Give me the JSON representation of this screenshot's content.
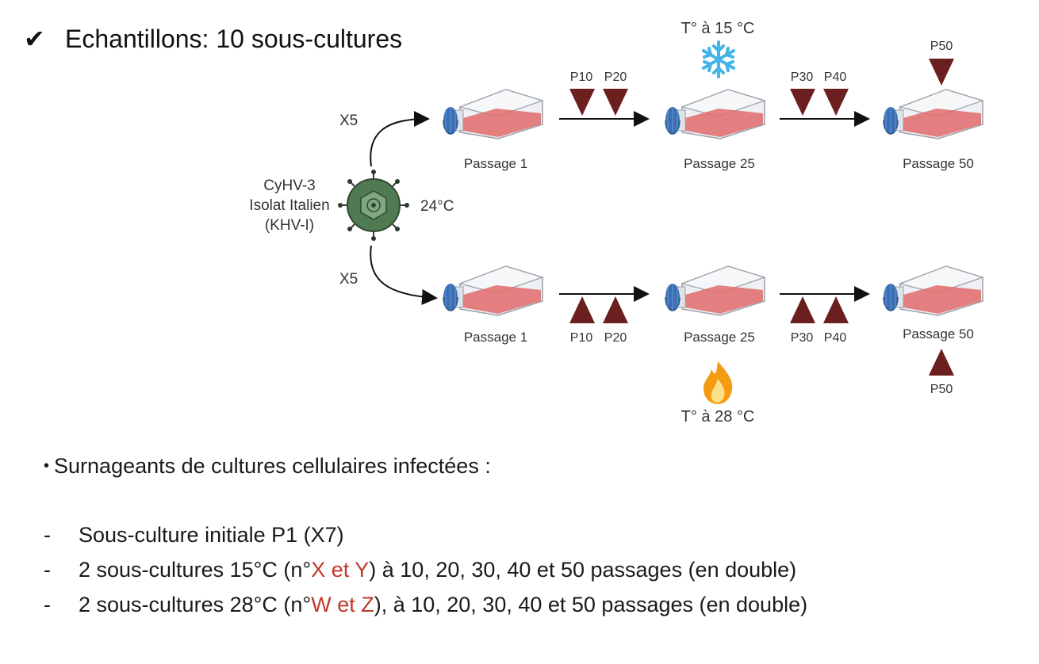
{
  "title": "Echantillons: 10 sous-cultures",
  "check_icon": "✔",
  "virus": {
    "lines": [
      "CyHV-3",
      "Isolat Italien",
      "(KHV-I)"
    ],
    "temperature": "24°C",
    "icon": "virus-icon"
  },
  "branch_multiplier_top": "X5",
  "branch_multiplier_bottom": "X5",
  "top_row": {
    "temperature": "T° à 15 °C",
    "icon": "snowflake-icon",
    "passages": [
      "Passage 1",
      "Passage 25",
      "Passage 50"
    ],
    "markers_1": [
      "P10",
      "P20"
    ],
    "markers_2": [
      "P30",
      "P40"
    ],
    "marker_end": "P50"
  },
  "bottom_row": {
    "temperature": "T° à 28 °C",
    "icon": "flame-icon",
    "passages": [
      "Passage 1",
      "Passage 25",
      "Passage 50"
    ],
    "markers_1": [
      "P10",
      "P20"
    ],
    "markers_2": [
      "P30",
      "P40"
    ],
    "marker_end": "P50"
  },
  "bullet": "Surnageants de cultures cellulaires infectées :",
  "list": [
    {
      "dash": "-",
      "parts": [
        {
          "text": "Sous-culture initiale P1 (X7)",
          "red": false
        }
      ]
    },
    {
      "dash": "-",
      "parts": [
        {
          "text": "2 sous-cultures 15°C (n°",
          "red": false
        },
        {
          "text": "X et Y",
          "red": true
        },
        {
          "text": ") à 10, 20, 30, 40 et 50 passages (en double)",
          "red": false
        }
      ]
    },
    {
      "dash": "-",
      "parts": [
        {
          "text": "2 sous-cultures 28°C (n°",
          "red": false
        },
        {
          "text": "W et Z",
          "red": true
        },
        {
          "text": "), à 10, 20, 30, 40 et 50 passages (en double)",
          "red": false
        }
      ]
    }
  ],
  "colors": {
    "triangle": "#6b1f1f",
    "flask_media": "#e06b6b",
    "cap": "#3b6fb3",
    "snowflake": "#43b4e6",
    "flame": "#f39c12",
    "virus": "#4f7a52",
    "red_text": "#c0392b"
  }
}
